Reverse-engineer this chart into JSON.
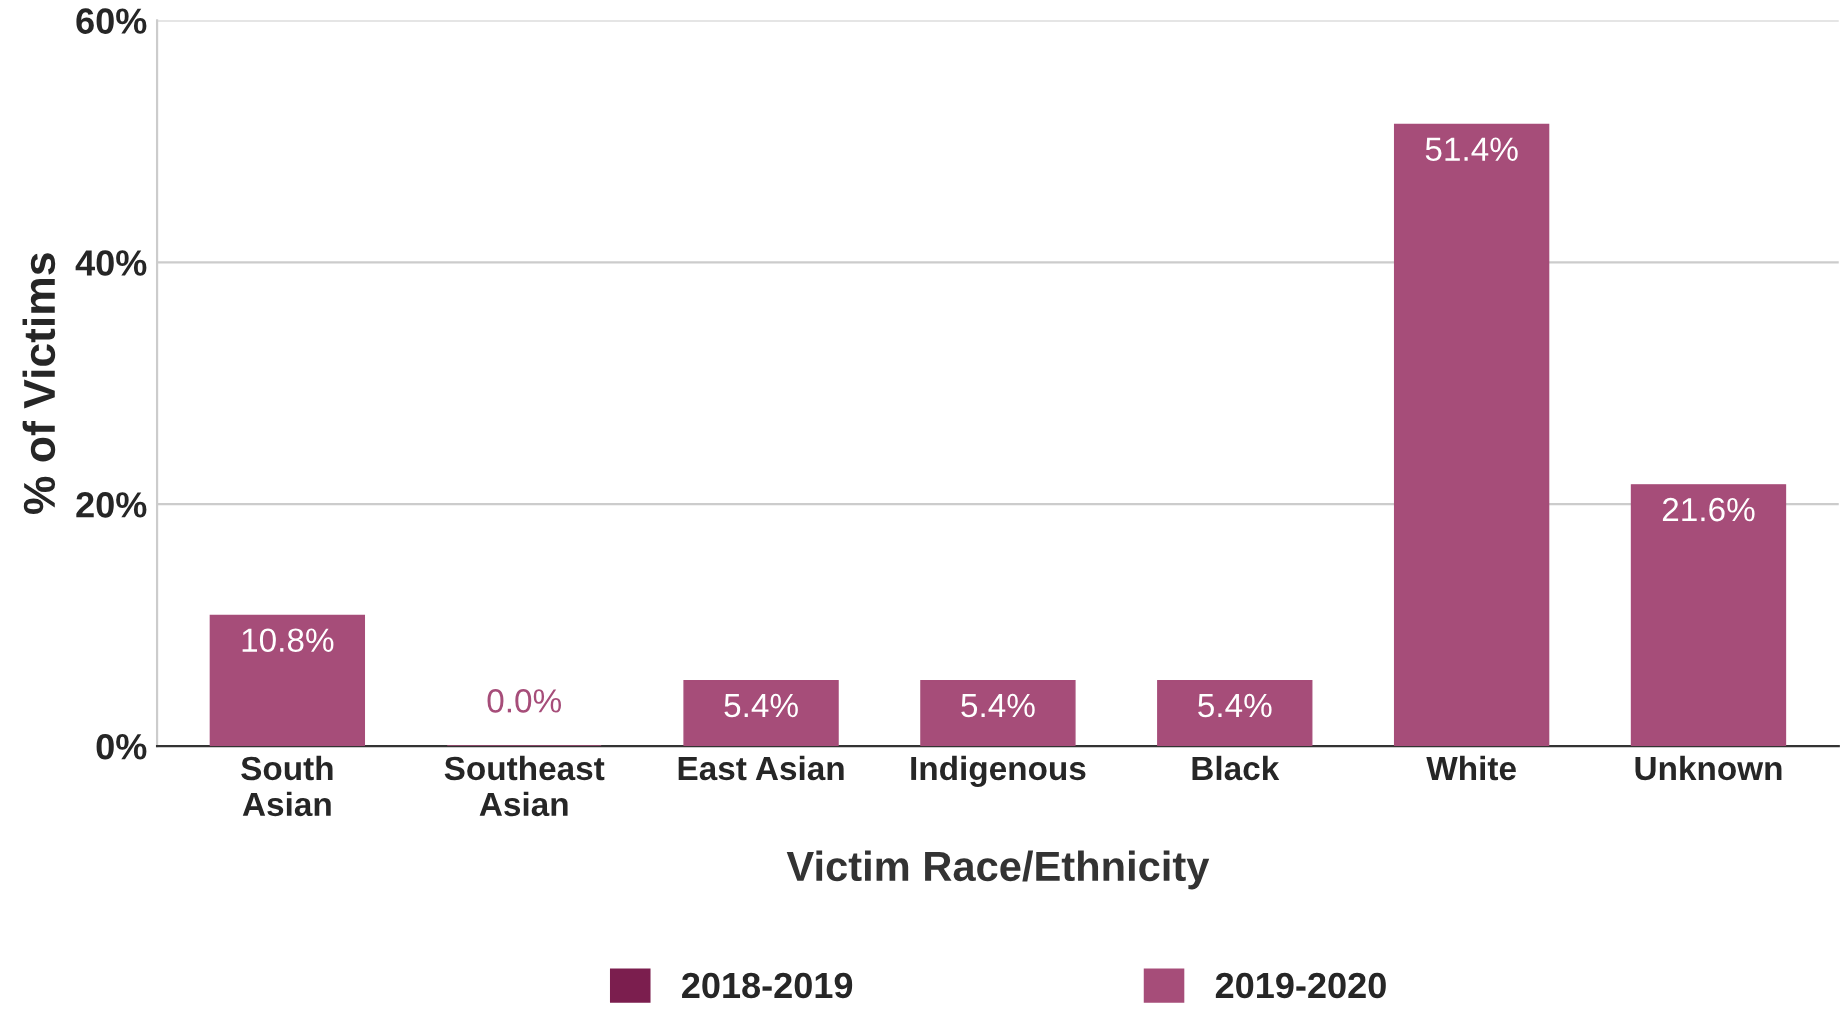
{
  "chart_data": {
    "type": "bar",
    "xlabel": "Victim Race/Ethnicity",
    "ylabel": "% of Victims",
    "categories": [
      "South\nAsian",
      "Southeast\nAsian",
      "East Asian",
      "Indigenous",
      "Black",
      "White",
      "Unknown"
    ],
    "series": [
      {
        "name": "2018-2019",
        "color": "#7b1e4e",
        "values": [
          null,
          null,
          null,
          null,
          null,
          null,
          null
        ]
      },
      {
        "name": "2019-2020",
        "color": "#a64d79",
        "values": [
          10.8,
          0.0,
          5.4,
          5.4,
          5.4,
          51.4,
          21.6
        ],
        "value_labels": [
          "10.8%",
          "0.0%",
          "5.4%",
          "5.4%",
          "5.4%",
          "51.4%",
          "21.6%"
        ]
      }
    ],
    "ylim": [
      0,
      60
    ],
    "yticks": [
      {
        "value": 0,
        "label": "0%"
      },
      {
        "value": 20,
        "label": "20%"
      },
      {
        "value": 40,
        "label": "40%"
      },
      {
        "value": 60,
        "label": "60%"
      }
    ],
    "grid": "y",
    "legend": "bottom"
  }
}
